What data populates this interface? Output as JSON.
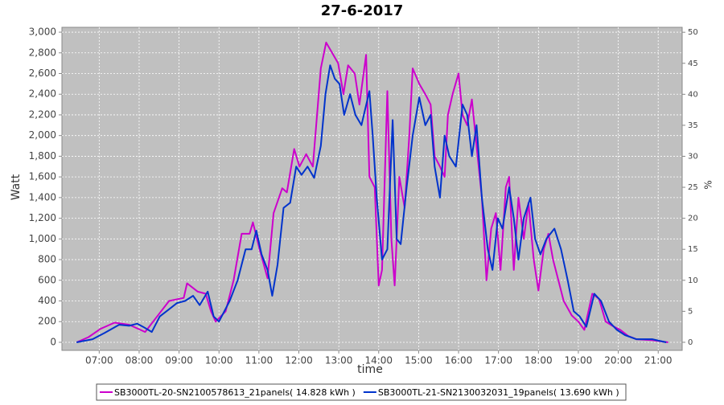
{
  "chart_data": {
    "type": "line",
    "title": "27-6-2017",
    "xlabel": "time",
    "ylabel": "Watt",
    "y2label": "%",
    "xlim": [
      "06:04",
      "21:36"
    ],
    "xticks": [
      "07:00",
      "08:00",
      "09:00",
      "10:00",
      "11:00",
      "12:00",
      "13:00",
      "14:00",
      "15:00",
      "16:00",
      "17:00",
      "18:00",
      "19:00",
      "20:00",
      "21:00"
    ],
    "ylim": [
      -78,
      3047
    ],
    "yticks": [
      0,
      200,
      400,
      600,
      800,
      {
        "value": 1000,
        "label": "1,000"
      },
      {
        "value": 1200,
        "label": "1,200"
      },
      {
        "value": 1400,
        "label": "1,400"
      },
      {
        "value": 1600,
        "label": "1,600"
      },
      {
        "value": 1800,
        "label": "1,800"
      },
      {
        "value": 2000,
        "label": "2,000"
      },
      {
        "value": 2200,
        "label": "2,200"
      },
      {
        "value": 2400,
        "label": "2,400"
      },
      {
        "value": 2600,
        "label": "2,600"
      },
      {
        "value": 2800,
        "label": "2,800"
      },
      {
        "value": 3000,
        "label": "3,000"
      }
    ],
    "y2lim": [
      -1.3,
      50.8
    ],
    "y2ticks": [
      0,
      5,
      10,
      15,
      20,
      25,
      30,
      35,
      40,
      45,
      50
    ],
    "grid": true,
    "legend": "bottom",
    "series": [
      {
        "name": "SB3000TL-20-SN2100578613_21panels( 14.828 kWh )",
        "color": "#cc00cc",
        "x": [
          "06:26",
          "06:44",
          "07:02",
          "07:23",
          "07:45",
          "08:09",
          "08:27",
          "08:45",
          "09:07",
          "09:12",
          "09:28",
          "09:40",
          "09:48",
          "09:55",
          "10:10",
          "10:22",
          "10:34",
          "10:46",
          "10:51",
          "11:01",
          "11:13",
          "11:22",
          "11:35",
          "11:42",
          "11:53",
          "12:01",
          "12:11",
          "12:21",
          "12:33",
          "12:41",
          "12:50",
          "12:59",
          "13:07",
          "13:14",
          "13:24",
          "13:31",
          "13:41",
          "13:46",
          "13:54",
          "14:00",
          "14:05",
          "14:13",
          "14:19",
          "14:24",
          "14:31",
          "14:39",
          "14:46",
          "14:51",
          "15:01",
          "15:10",
          "15:18",
          "15:24",
          "15:32",
          "15:39",
          "15:44",
          "15:51",
          "16:00",
          "16:06",
          "16:13",
          "16:20",
          "16:27",
          "16:35",
          "16:42",
          "16:49",
          "16:56",
          "17:03",
          "17:11",
          "17:16",
          "17:23",
          "17:30",
          "17:38",
          "17:45",
          "17:53",
          "18:00",
          "18:08",
          "18:15",
          "18:22",
          "18:30",
          "18:38",
          "18:50",
          "19:00",
          "19:09",
          "19:21",
          "19:31",
          "19:41",
          "19:51",
          "20:03",
          "20:15",
          "20:27",
          "20:51",
          "21:15"
        ],
        "values": [
          0,
          50,
          130,
          190,
          170,
          100,
          250,
          400,
          430,
          570,
          490,
          470,
          300,
          200,
          300,
          600,
          1050,
          1050,
          1160,
          900,
          620,
          1250,
          1490,
          1450,
          1870,
          1700,
          1820,
          1700,
          2650,
          2900,
          2800,
          2700,
          2400,
          2680,
          2600,
          2300,
          2780,
          1600,
          1500,
          550,
          700,
          2430,
          1000,
          550,
          1600,
          1300,
          2000,
          2650,
          2500,
          2400,
          2300,
          1800,
          1700,
          1600,
          2200,
          2400,
          2600,
          2200,
          2100,
          2350,
          1900,
          1400,
          600,
          1100,
          1250,
          700,
          1500,
          1600,
          700,
          1400,
          1000,
          1350,
          800,
          500,
          900,
          1050,
          800,
          600,
          400,
          260,
          200,
          120,
          470,
          420,
          200,
          160,
          120,
          60,
          30,
          20,
          0
        ]
      },
      {
        "name": "SB3000TL-21-SN2130032031_19panels( 13.690 kWh )",
        "color": "#0033cc",
        "x": [
          "06:26",
          "06:50",
          "07:08",
          "07:30",
          "07:45",
          "07:57",
          "08:06",
          "08:19",
          "08:31",
          "08:45",
          "08:57",
          "09:09",
          "09:21",
          "09:31",
          "09:43",
          "09:52",
          "10:00",
          "10:16",
          "10:28",
          "10:40",
          "10:49",
          "10:56",
          "11:04",
          "11:13",
          "11:20",
          "11:28",
          "11:37",
          "11:47",
          "11:56",
          "12:04",
          "12:13",
          "12:23",
          "12:33",
          "12:40",
          "12:47",
          "12:54",
          "13:01",
          "13:08",
          "13:17",
          "13:25",
          "13:34",
          "13:46",
          "13:51",
          "13:57",
          "14:05",
          "14:13",
          "14:21",
          "14:27",
          "14:33",
          "14:42",
          "14:51",
          "15:01",
          "15:10",
          "15:18",
          "15:24",
          "15:32",
          "15:39",
          "15:46",
          "15:56",
          "16:06",
          "16:13",
          "16:20",
          "16:27",
          "16:35",
          "16:44",
          "16:51",
          "16:59",
          "17:06",
          "17:16",
          "17:23",
          "17:30",
          "17:38",
          "17:48",
          "17:55",
          "18:03",
          "18:12",
          "18:24",
          "18:34",
          "18:44",
          "18:53",
          "19:02",
          "19:12",
          "19:24",
          "19:34",
          "19:46",
          "19:58",
          "20:10",
          "20:27",
          "20:51",
          "21:12"
        ],
        "values": [
          0,
          30,
          90,
          170,
          160,
          180,
          150,
          100,
          250,
          320,
          380,
          400,
          450,
          360,
          490,
          250,
          200,
          400,
          600,
          900,
          900,
          1080,
          850,
          700,
          450,
          750,
          1300,
          1350,
          1700,
          1620,
          1700,
          1590,
          1900,
          2400,
          2680,
          2550,
          2500,
          2200,
          2400,
          2200,
          2100,
          2430,
          2000,
          1400,
          800,
          900,
          2150,
          1000,
          950,
          1500,
          2000,
          2370,
          2100,
          2200,
          1700,
          1400,
          2000,
          1800,
          1700,
          2300,
          2200,
          1800,
          2100,
          1400,
          900,
          700,
          1200,
          1100,
          1500,
          1200,
          800,
          1200,
          1400,
          1000,
          850,
          1000,
          1100,
          900,
          600,
          300,
          250,
          150,
          470,
          400,
          200,
          120,
          70,
          30,
          30,
          0
        ]
      }
    ]
  }
}
